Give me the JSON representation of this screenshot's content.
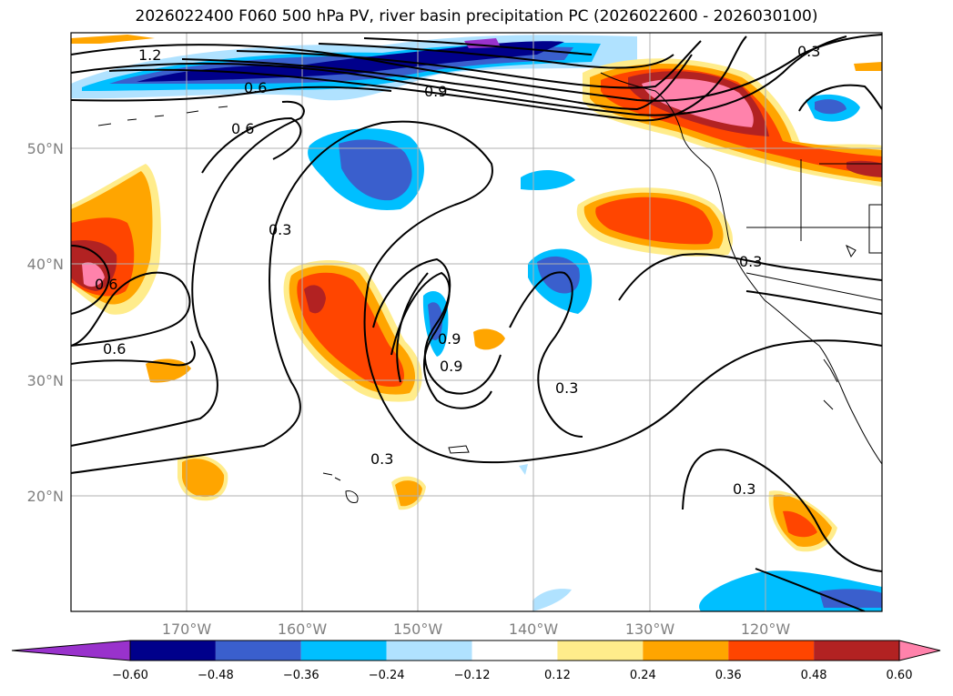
{
  "title": "2026022400 F060 500 hPa PV, river basin precipitation PC (2026022600 - 2026030100)",
  "axes": {
    "lon_ticks": [
      "170°W",
      "160°W",
      "150°W",
      "140°W",
      "130°W",
      "120°W"
    ],
    "lat_ticks": [
      "50°N",
      "40°N",
      "30°N",
      "20°N"
    ]
  },
  "colorbar": {
    "levels": [
      "−0.60",
      "−0.48",
      "−0.36",
      "−0.24",
      "−0.12",
      "0.12",
      "0.24",
      "0.36",
      "0.48",
      "0.60"
    ],
    "colors": [
      "#9932cc",
      "#00008b",
      "#3a5fcd",
      "#00bfff",
      "#b0e2ff",
      "#ffffff",
      "#ffec8b",
      "#ffa500",
      "#ff4500",
      "#b22222",
      "#ff82ab"
    ]
  },
  "contour_labels": [
    "1.2",
    "0.6",
    "0.9",
    "0.6",
    "0.3",
    "0.6",
    "0.6",
    "0.9",
    "0.9",
    "0.3",
    "0.3",
    "0.3",
    "0.3",
    "0.3"
  ],
  "colors": {
    "land_outline": "#000000",
    "grid": "#b0b0b0"
  }
}
